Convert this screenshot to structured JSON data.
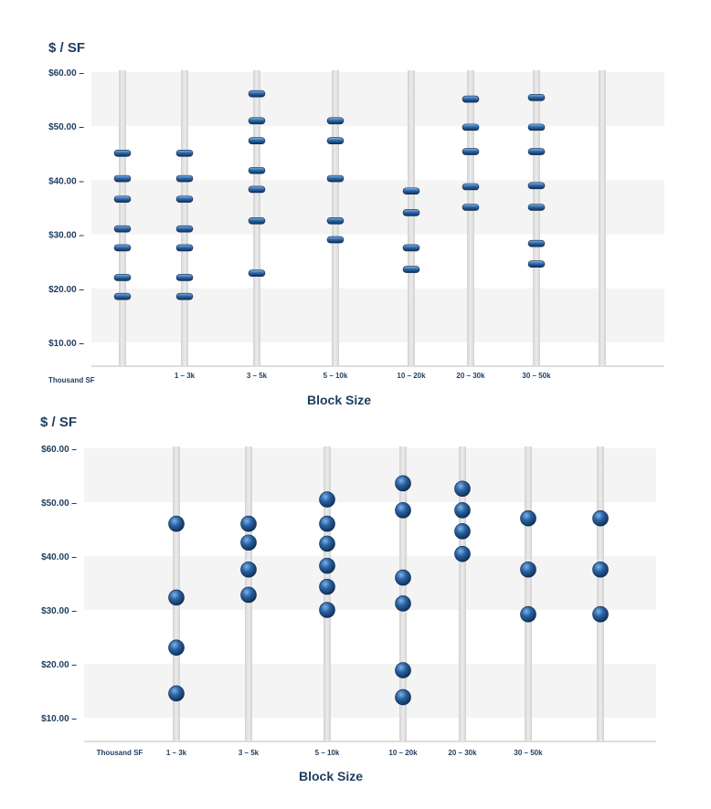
{
  "chart_data": [
    {
      "type": "scatter",
      "marker": "bar",
      "ylabel": "$ / SF",
      "xlabel": "Block Size",
      "y_ticks": [
        "$10.00 –",
        "$20.00 –",
        "$30.00 –",
        "$40.00 –",
        "$50.00 –",
        "$60.00 –"
      ],
      "ylim": [
        6,
        60
      ],
      "first_label": "Thousand SF",
      "category_labels": [
        "1 – 3k",
        "3 – 5k",
        "5 – 10k",
        "10 – 20k",
        "20 – 30k",
        "30 – 50k"
      ],
      "columns": [
        [
          45,
          40.3,
          36.5,
          31,
          27.5,
          22,
          18.5
        ],
        [
          45,
          40.3,
          36.5,
          31,
          27.5,
          22,
          18.5
        ],
        [
          56,
          51,
          47.3,
          41.8,
          38.3,
          32.5,
          22.8
        ],
        [
          51,
          47.3,
          40.3,
          32.5,
          29
        ],
        [
          38,
          34,
          27.5,
          23.5
        ],
        [
          55,
          49.8,
          45.3,
          38.8,
          35
        ],
        [
          55.3,
          49.8,
          45.3,
          39,
          35,
          28.3,
          24.5
        ],
        []
      ]
    },
    {
      "type": "scatter",
      "marker": "circle",
      "ylabel": "$ / SF",
      "xlabel": "Block Size",
      "y_ticks": [
        "$10.00 –",
        "$20.00 –",
        "$30.00 –",
        "$40.00 –",
        "$50.00 –",
        "$60.00 –"
      ],
      "ylim": [
        6,
        60
      ],
      "first_label": "Thousand SF",
      "category_labels": [
        "1 – 3k",
        "3 – 5k",
        "5 – 10k",
        "10 – 20k",
        "20 – 30k",
        "30 – 50k"
      ],
      "columns": [
        [
          46,
          32.3,
          23,
          14.5
        ],
        [
          46,
          42.5,
          37.5,
          32.8
        ],
        [
          50.5,
          46,
          42.3,
          38.2,
          34.3,
          30
        ],
        [
          53.5,
          48.5,
          36,
          31.2,
          18.8,
          13.8
        ],
        [
          52.5,
          48.5,
          44.6,
          40.4
        ],
        [
          47,
          37.5,
          29.2
        ],
        [
          47,
          37.5,
          29.2
        ]
      ]
    }
  ],
  "colors": {
    "text": "#1d3d5e",
    "band": "#f4f4f4",
    "rod": "#d9d9d9",
    "marker": "#1f4f86",
    "marker_light": "#5a8fcf",
    "axis": "#bbbbbb"
  }
}
